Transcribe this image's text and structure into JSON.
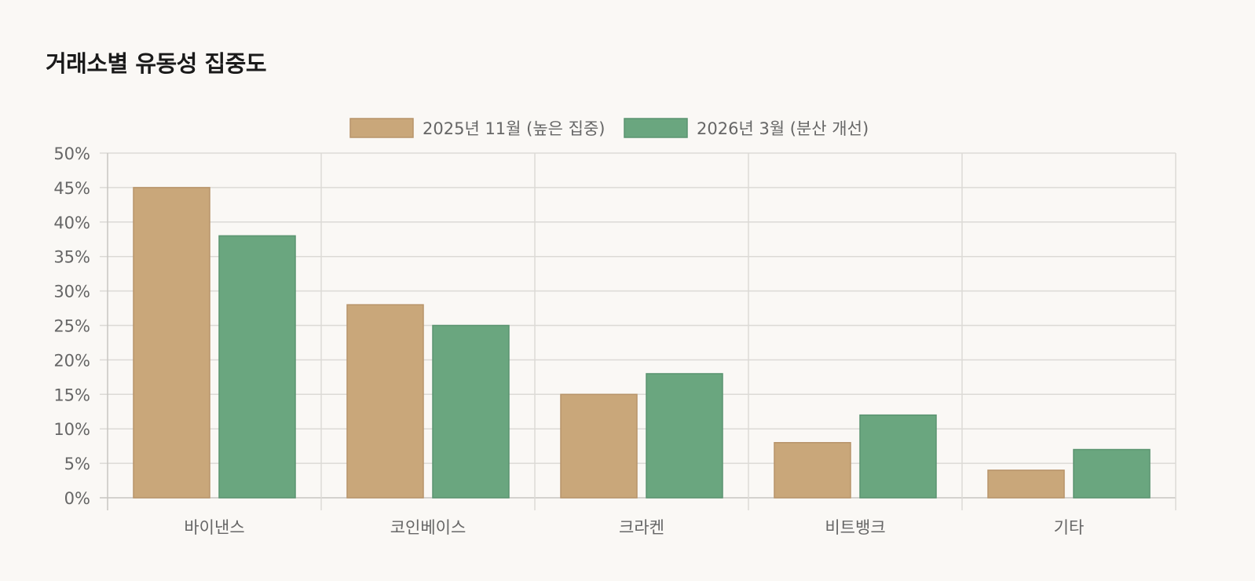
{
  "title": "거래소별 유동성 집중도",
  "chart_data": {
    "type": "bar",
    "categories": [
      "바이낸스",
      "코인베이스",
      "크라켄",
      "비트뱅크",
      "기타"
    ],
    "series": [
      {
        "name": "2025년 11월 (높은 집중)",
        "values": [
          45,
          28,
          15,
          8,
          4
        ],
        "color": "#c9a77a"
      },
      {
        "name": "2026년 3월 (분산 개선)",
        "values": [
          38,
          25,
          18,
          12,
          7
        ],
        "color": "#6aa67f"
      }
    ],
    "ylim": [
      0,
      50
    ],
    "ytick_step": 5,
    "ytick_suffix": "%",
    "grid": true,
    "legend": "top-center"
  },
  "colors": {
    "grid": "#dcdad6",
    "axis_text": "#666666",
    "bar_border_a": "#b8946a",
    "bar_border_b": "#5a9470"
  }
}
